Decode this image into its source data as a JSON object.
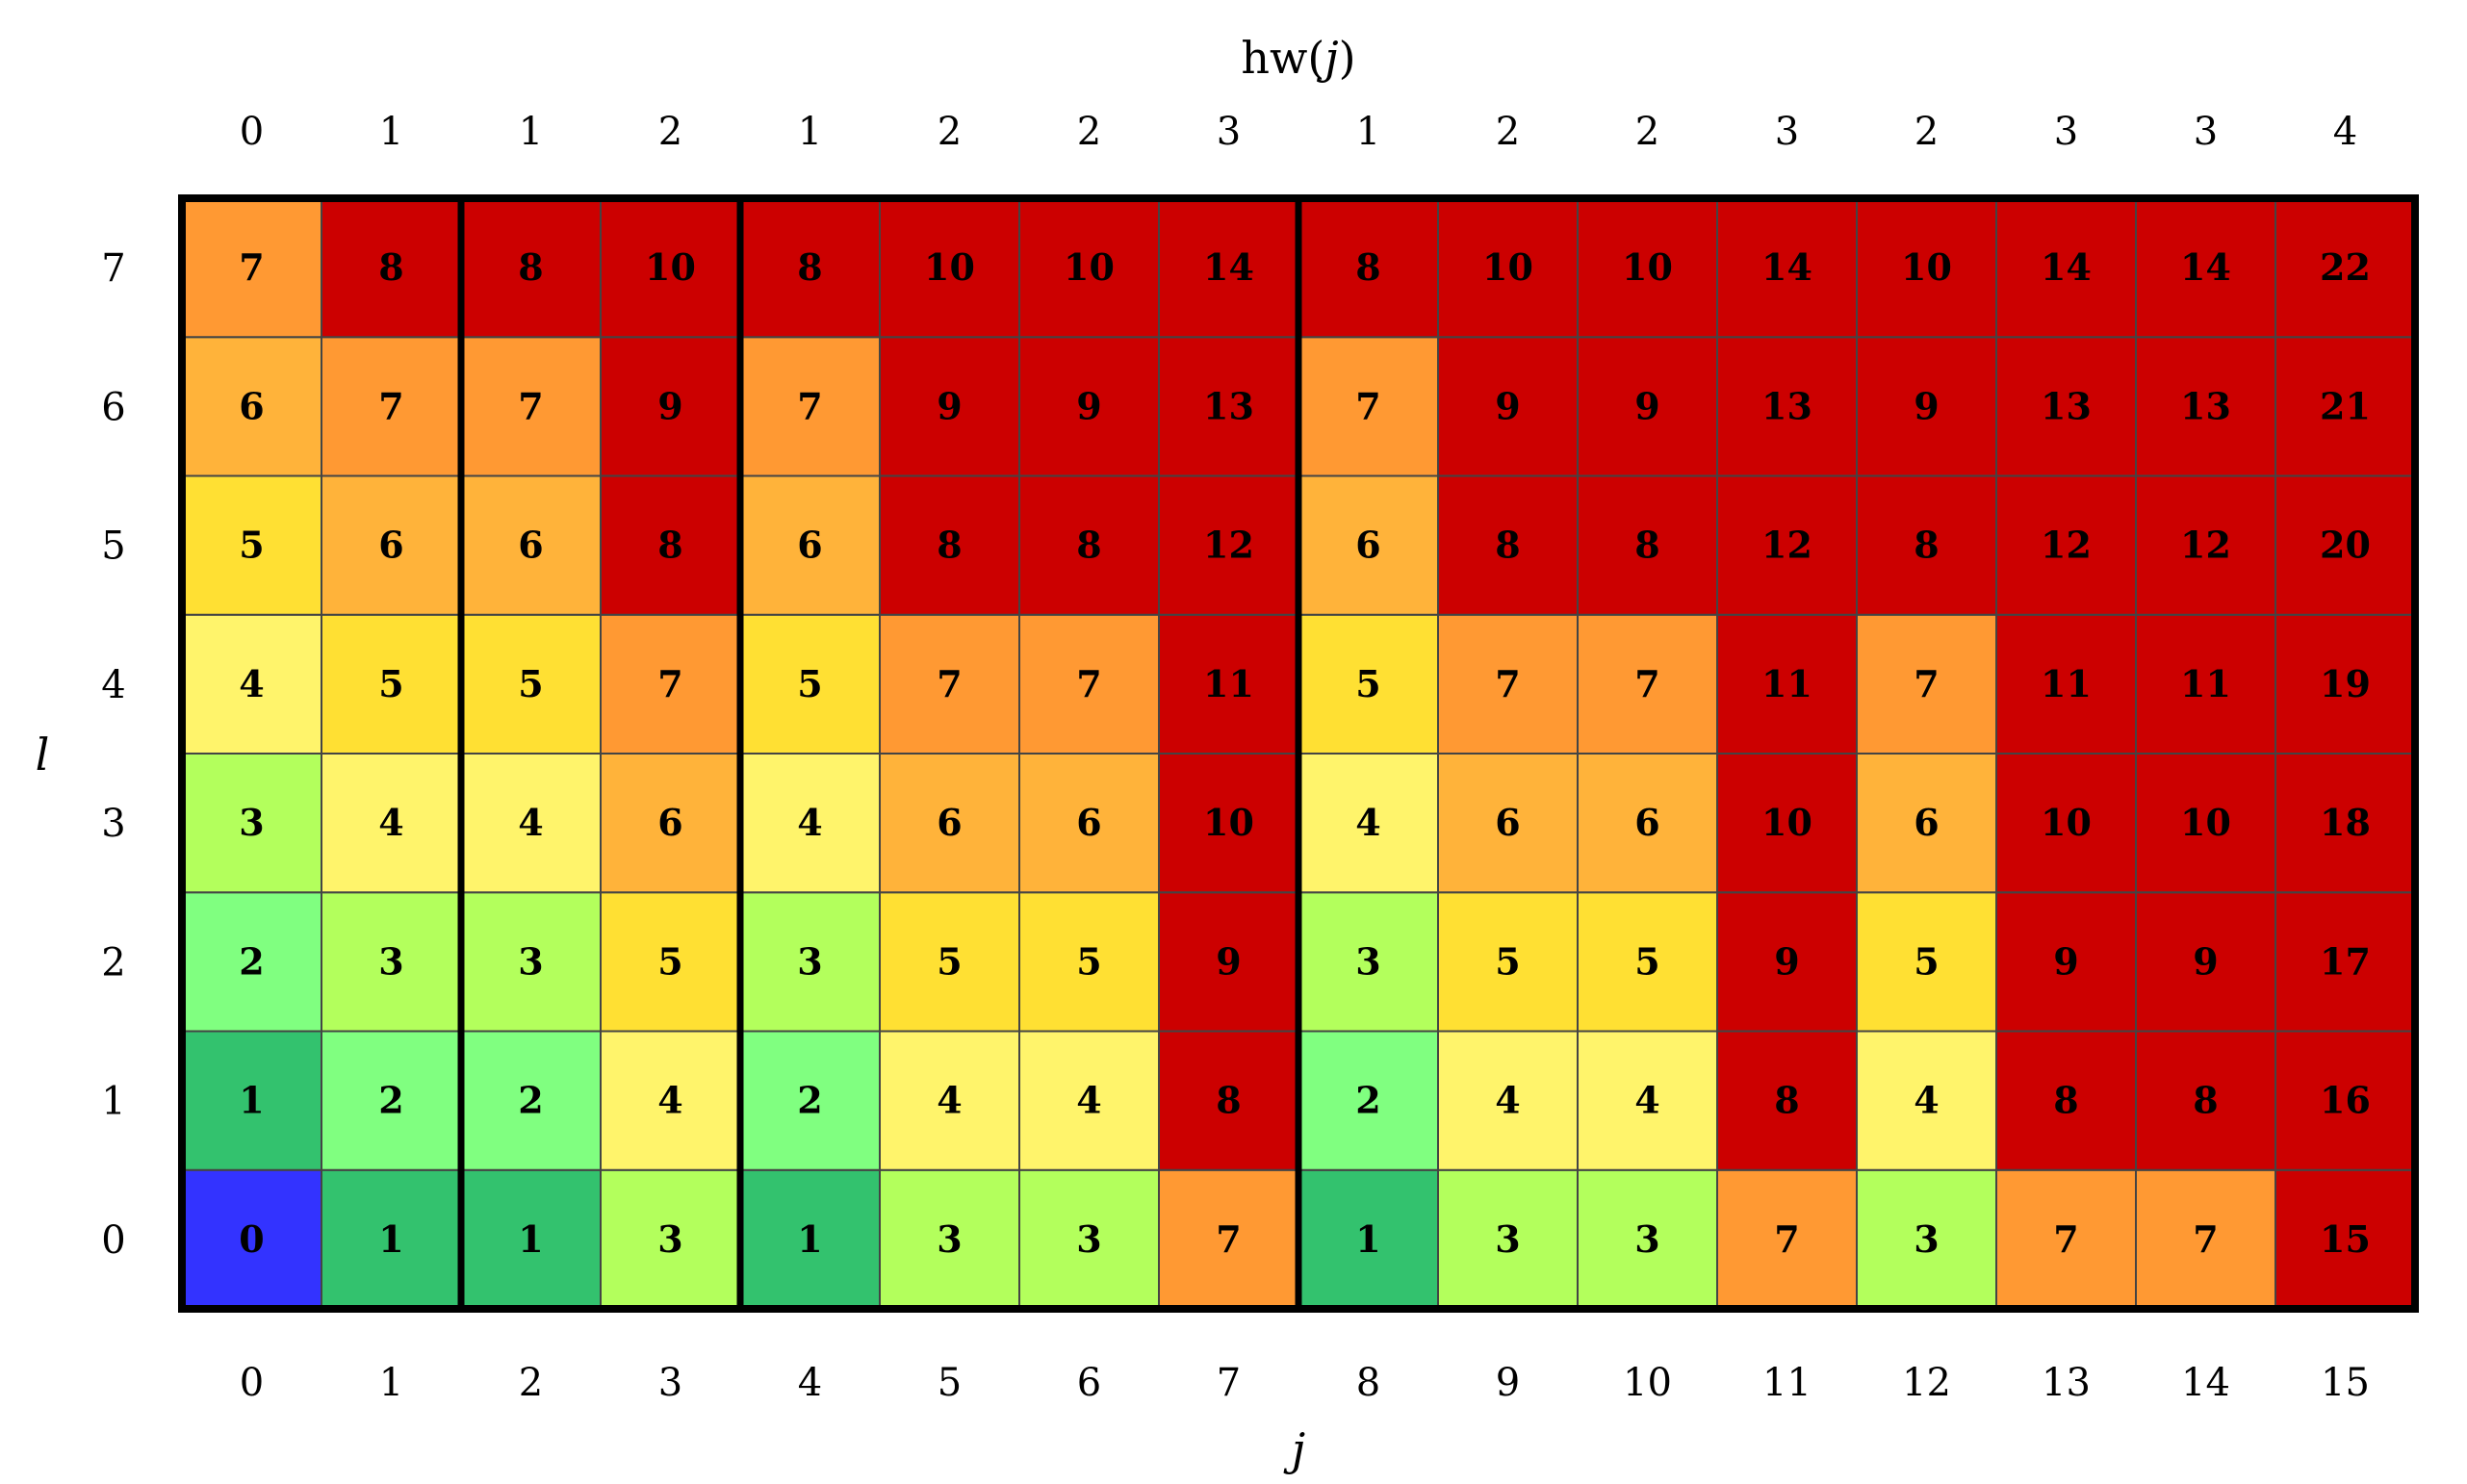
{
  "chart_data": {
    "type": "heatmap",
    "xlabel": "j",
    "top_xlabel_prefix": "hw(",
    "top_xlabel_var": "j",
    "top_xlabel_suffix": ")",
    "ylabel": "l",
    "x": [
      0,
      1,
      2,
      3,
      4,
      5,
      6,
      7,
      8,
      9,
      10,
      11,
      12,
      13,
      14,
      15
    ],
    "hw": [
      0,
      1,
      1,
      2,
      1,
      2,
      2,
      3,
      1,
      2,
      2,
      3,
      2,
      3,
      3,
      4
    ],
    "y": [
      0,
      1,
      2,
      3,
      4,
      5,
      6,
      7
    ],
    "values": [
      [
        0,
        1,
        1,
        3,
        1,
        3,
        3,
        7,
        1,
        3,
        3,
        7,
        3,
        7,
        7,
        15
      ],
      [
        1,
        2,
        2,
        4,
        2,
        4,
        4,
        8,
        2,
        4,
        4,
        8,
        4,
        8,
        8,
        16
      ],
      [
        2,
        3,
        3,
        5,
        3,
        5,
        5,
        9,
        3,
        5,
        5,
        9,
        5,
        9,
        9,
        17
      ],
      [
        3,
        4,
        4,
        6,
        4,
        6,
        6,
        10,
        4,
        6,
        6,
        10,
        6,
        10,
        10,
        18
      ],
      [
        4,
        5,
        5,
        7,
        5,
        7,
        7,
        11,
        5,
        7,
        7,
        11,
        7,
        11,
        11,
        19
      ],
      [
        5,
        6,
        6,
        8,
        6,
        8,
        8,
        12,
        6,
        8,
        8,
        12,
        8,
        12,
        12,
        20
      ],
      [
        6,
        7,
        7,
        9,
        7,
        9,
        9,
        13,
        7,
        9,
        9,
        13,
        9,
        13,
        13,
        21
      ],
      [
        7,
        8,
        8,
        10,
        8,
        10,
        10,
        14,
        8,
        10,
        10,
        14,
        10,
        14,
        14,
        22
      ]
    ],
    "color_map": {
      "0": "#3333ff",
      "1": "#33c26e",
      "2": "#80ff80",
      "3": "#b3ff5c",
      "4": "#fff46b",
      "5": "#ffe033",
      "6": "#ffb33a",
      "7": "#ff9933",
      "8+": "#cc0000"
    },
    "emphasis_separators_after_column": [
      1,
      3,
      7
    ],
    "grid": true
  }
}
